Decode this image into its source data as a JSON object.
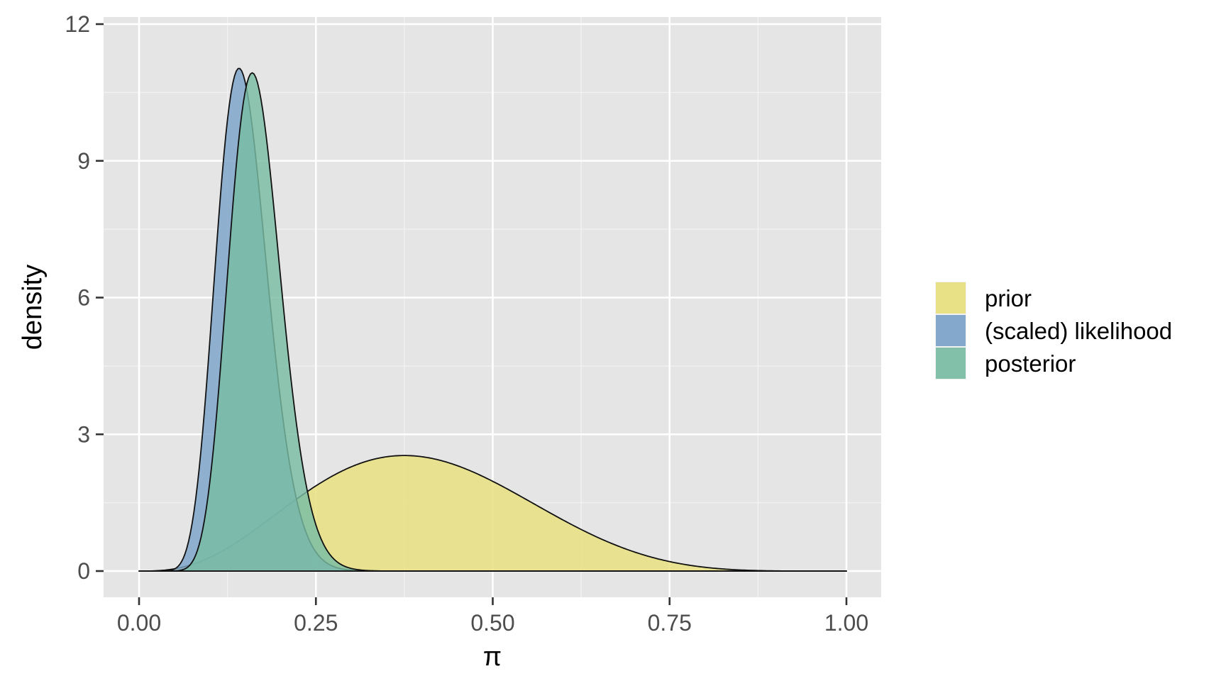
{
  "chart_data": {
    "type": "area",
    "xlabel": "π",
    "ylabel": "density",
    "xlim": [
      -0.05,
      1.05
    ],
    "ylim": [
      -0.6,
      12.1
    ],
    "x_ticks": [
      0,
      0.25,
      0.5,
      0.75,
      1
    ],
    "x_tick_labels": [
      "0.00",
      "0.25",
      "0.50",
      "0.75",
      "1.00"
    ],
    "y_ticks": [
      0,
      3,
      6,
      9,
      12
    ],
    "y_tick_labels": [
      "0",
      "3",
      "6",
      "9",
      "12"
    ],
    "grid": true,
    "legend_position": "right",
    "series": [
      {
        "name": "prior",
        "distribution": "beta",
        "alpha": 4,
        "beta": 6,
        "color": "#e8e07c",
        "x": [
          0,
          0.05,
          0.1,
          0.15,
          0.2,
          0.25,
          0.3,
          0.35,
          0.4,
          0.45,
          0.5,
          0.55,
          0.6,
          0.65,
          0.7,
          0.75,
          0.8,
          0.85,
          0.9,
          0.95,
          1
        ],
        "values": [
          0,
          0.04,
          0.27,
          0.65,
          1.1,
          1.5,
          1.85,
          2.2,
          2.48,
          2.48,
          2.46,
          2.25,
          1.95,
          1.58,
          1.2,
          0.84,
          0.54,
          0.3,
          0.13,
          0.03,
          0
        ]
      },
      {
        "name": "(scaled) likelihood",
        "distribution": "beta",
        "alpha": 14,
        "beta": 80,
        "color": "#7aa2c8",
        "x": [
          0,
          0.05,
          0.08,
          0.1,
          0.12,
          0.14,
          0.16,
          0.18,
          0.2,
          0.22,
          0.25,
          0.3,
          0.35,
          0.4
        ],
        "values": [
          0,
          0.2,
          2.6,
          6.5,
          10.3,
          11.5,
          10.3,
          7.4,
          4.3,
          2.1,
          0.5,
          0.03,
          0,
          0
        ]
      },
      {
        "name": "posterior",
        "distribution": "beta",
        "alpha": 17,
        "beta": 85,
        "color": "#78bca3",
        "x": [
          0,
          0.05,
          0.08,
          0.1,
          0.12,
          0.14,
          0.16,
          0.18,
          0.2,
          0.22,
          0.25,
          0.3,
          0.35,
          0.4
        ],
        "values": [
          0,
          0.02,
          0.7,
          2.7,
          6.6,
          10.0,
          11.4,
          10.5,
          7.9,
          5.1,
          1.9,
          0.15,
          0,
          0
        ]
      }
    ]
  }
}
